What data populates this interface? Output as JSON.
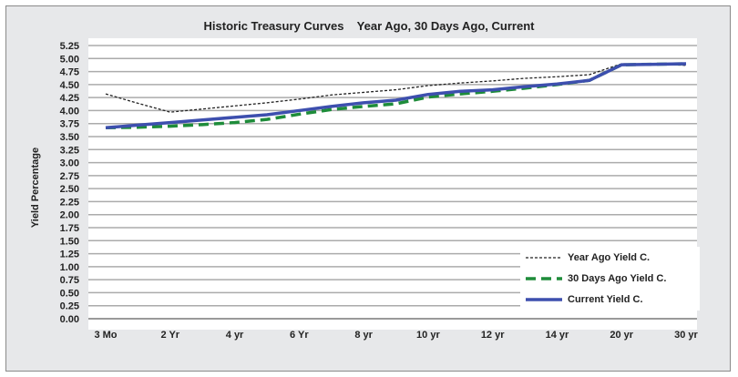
{
  "chart_data": {
    "type": "line",
    "title": "Historic Treasury Curves    Year Ago, 30 Days Ago, Current",
    "xlabel": "",
    "ylabel": "Yield Percentage",
    "categories": [
      "3 Mo",
      "",
      "2 Yr",
      "",
      "4 yr",
      "",
      "6 Yr",
      "",
      "8 yr",
      "",
      "10 yr",
      "",
      "12 yr",
      "",
      "14 yr",
      "",
      "20 yr",
      "",
      "30 yr"
    ],
    "ylim": [
      0,
      5.25
    ],
    "yticks": [
      "0.00",
      "0.25",
      "0.50",
      "0.75",
      "1.00",
      "1.25",
      "1.50",
      "1.75",
      "2.00",
      "2.25",
      "2.50",
      "2.75",
      "3.00",
      "3.25",
      "3.50",
      "3.75",
      "4.00",
      "4.25",
      "4.50",
      "4.75",
      "5.00",
      "5.25"
    ],
    "grid": true,
    "legend_position": "bottom-right",
    "series": [
      {
        "name": "Year Ago Yield C.",
        "color": "#222222",
        "style": "dotted",
        "values": [
          4.32,
          4.14,
          3.97,
          4.03,
          4.09,
          4.15,
          4.22,
          4.3,
          4.35,
          4.4,
          4.48,
          4.53,
          4.57,
          4.62,
          4.65,
          4.69,
          4.9,
          4.89,
          4.87
        ]
      },
      {
        "name": "30 Days Ago Yield C.",
        "color": "#1e8c3a",
        "style": "dashed",
        "values": [
          3.67,
          3.68,
          3.7,
          3.73,
          3.77,
          3.83,
          3.93,
          4.02,
          4.08,
          4.13,
          4.26,
          4.32,
          4.37,
          4.43,
          4.5,
          4.58,
          4.88,
          4.89,
          4.9
        ]
      },
      {
        "name": "Current Yield C.",
        "color": "#3d4fae",
        "style": "solid",
        "values": [
          3.67,
          3.72,
          3.77,
          3.82,
          3.87,
          3.92,
          4.0,
          4.08,
          4.15,
          4.2,
          4.31,
          4.37,
          4.4,
          4.46,
          4.51,
          4.58,
          4.88,
          4.89,
          4.9
        ]
      }
    ]
  }
}
